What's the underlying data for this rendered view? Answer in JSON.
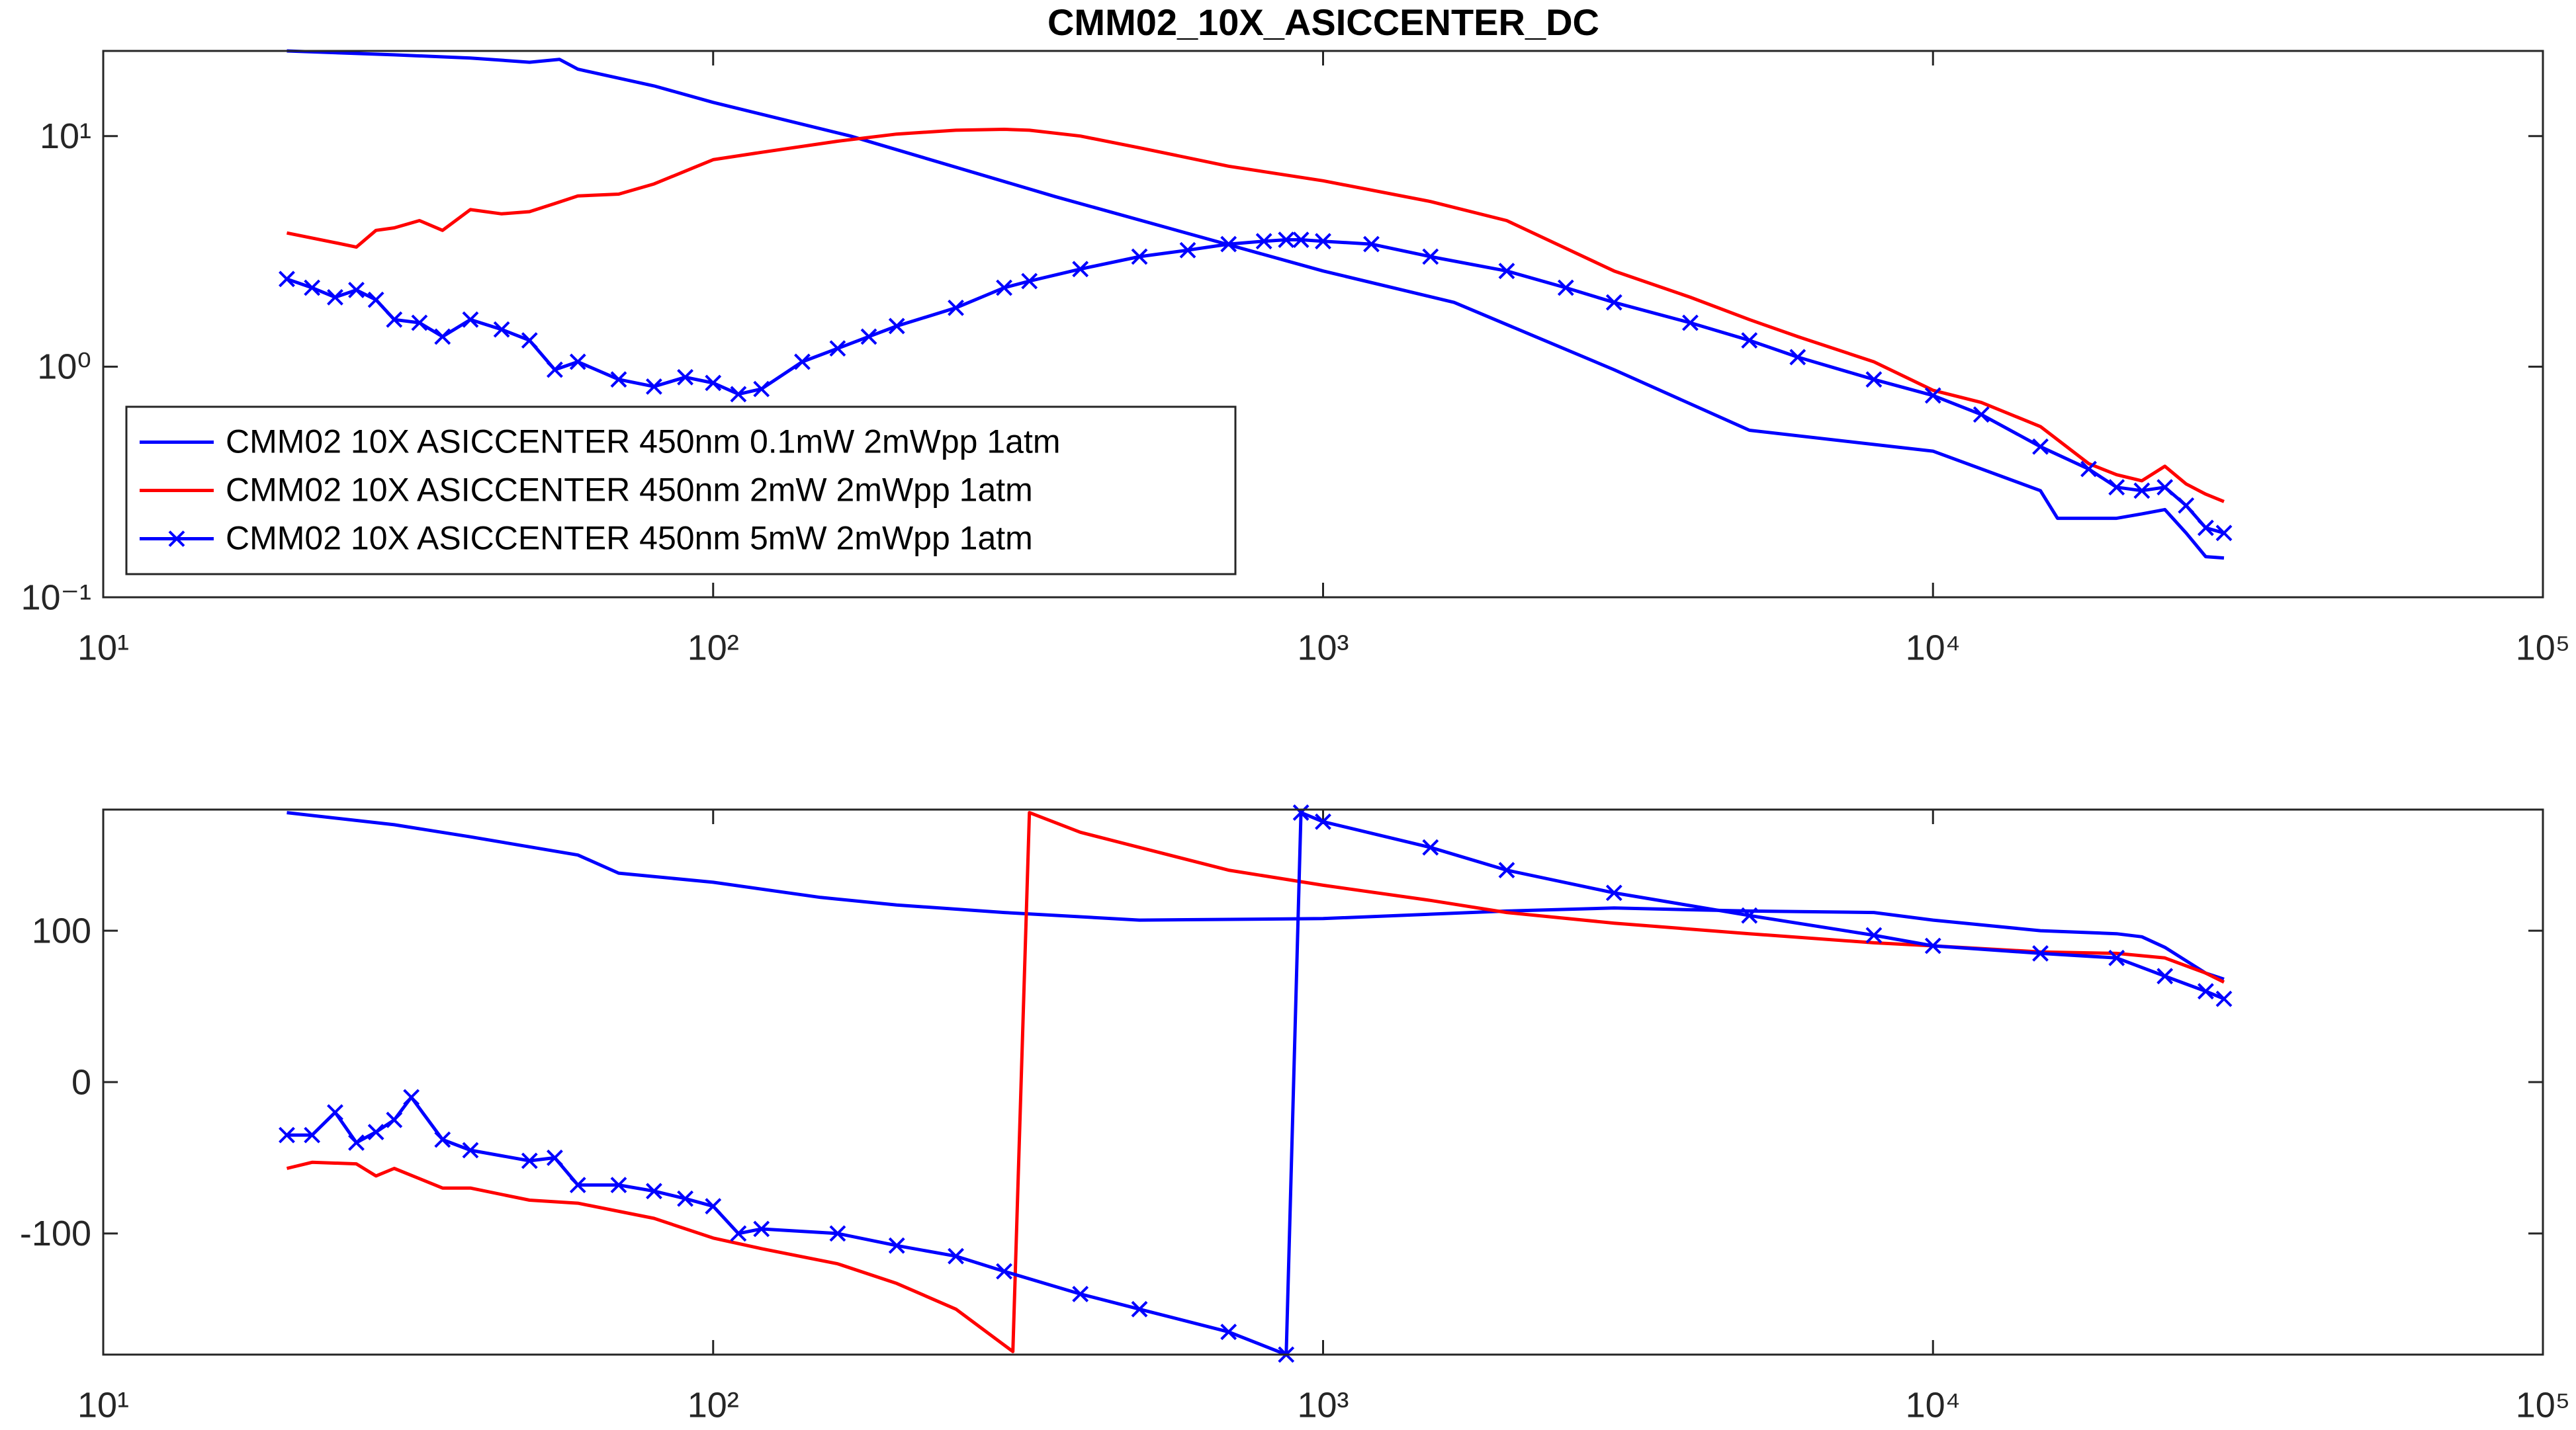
{
  "chart_data": [
    {
      "type": "line",
      "title": "CMM02_10X_ASICCENTER_DC",
      "xscale": "log",
      "yscale": "log",
      "xlim": [
        10,
        100000
      ],
      "xticks": [
        {
          "value": 10,
          "label": "10¹"
        },
        {
          "value": 100,
          "label": "10²"
        },
        {
          "value": 1000,
          "label": "10³"
        },
        {
          "value": 10000,
          "label": "10⁴"
        },
        {
          "value": 100000,
          "label": "10⁵"
        }
      ],
      "ylim": [
        0.1,
        23.4
      ],
      "yticks": [
        {
          "value": 0.1,
          "label": "10⁻¹"
        },
        {
          "value": 1,
          "label": "10⁰"
        },
        {
          "value": 10,
          "label": "10¹"
        }
      ],
      "legend": "southwest",
      "series": [
        {
          "name": "CMM02 10X ASICCENTER 450nm 0.1mW 2mWpp 1atm",
          "color": "#0000ff",
          "x": [
            20,
            30,
            40,
            50,
            56,
            60,
            80,
            100,
            168,
            364,
            1000,
            1640,
            3000,
            5000,
            10000,
            15000,
            16000,
            20000,
            22000,
            24000,
            26000,
            28000,
            30000
          ],
          "values": [
            23.4,
            22.5,
            21.8,
            20.9,
            21.5,
            19.5,
            16.5,
            14,
            10,
            5.46,
            2.6,
            1.9,
            0.97,
            0.53,
            0.43,
            0.29,
            0.22,
            0.22,
            0.23,
            0.24,
            0.19,
            0.15,
            0.148
          ]
        },
        {
          "name": "CMM02 10X ASICCENTER 450nm 2mW 2mWpp 1atm",
          "color": "#ff0000",
          "x": [
            20,
            24,
            26,
            28,
            30,
            33,
            36,
            40,
            45,
            50,
            55,
            60,
            70,
            80,
            100,
            120,
            160,
            200,
            250,
            300,
            330,
            400,
            500,
            700,
            1000,
            1500,
            2000,
            3000,
            4000,
            5000,
            6000,
            8000,
            10000,
            12000,
            15000,
            18000,
            20000,
            22000,
            24000,
            26000,
            28000,
            30000
          ],
          "values": [
            3.8,
            3.45,
            3.3,
            3.9,
            4.0,
            4.3,
            3.9,
            4.8,
            4.6,
            4.7,
            5.1,
            5.5,
            5.6,
            6.2,
            7.9,
            8.5,
            9.5,
            10.2,
            10.6,
            10.7,
            10.6,
            10,
            8.9,
            7.4,
            6.4,
            5.2,
            4.3,
            2.6,
            2.0,
            1.6,
            1.35,
            1.05,
            0.79,
            0.7,
            0.55,
            0.38,
            0.34,
            0.32,
            0.37,
            0.31,
            0.28,
            0.26
          ]
        },
        {
          "name": "CMM02 10X ASICCENTER 450nm 5mW 2mWpp 1atm",
          "color": "#0000ff",
          "marker": "x",
          "x": [
            20,
            22,
            24,
            26,
            28,
            30,
            33,
            36,
            40,
            45,
            50,
            55,
            60,
            70,
            80,
            90,
            100,
            110,
            120,
            140,
            160,
            180,
            200,
            250,
            300,
            330,
            400,
            500,
            600,
            700,
            800,
            870,
            920,
            1000,
            1200,
            1500,
            2000,
            2500,
            3000,
            4000,
            5000,
            6000,
            8000,
            10000,
            12000,
            15000,
            18000,
            20000,
            22000,
            24000,
            26000,
            28000,
            30000
          ],
          "values": [
            2.4,
            2.2,
            2.0,
            2.15,
            1.95,
            1.6,
            1.55,
            1.35,
            1.6,
            1.45,
            1.3,
            0.97,
            1.05,
            0.88,
            0.82,
            0.9,
            0.85,
            0.76,
            0.8,
            1.05,
            1.2,
            1.35,
            1.5,
            1.8,
            2.2,
            2.35,
            2.65,
            3.0,
            3.2,
            3.4,
            3.5,
            3.55,
            3.55,
            3.5,
            3.4,
            3.0,
            2.6,
            2.2,
            1.9,
            1.55,
            1.3,
            1.1,
            0.88,
            0.75,
            0.62,
            0.45,
            0.36,
            0.3,
            0.29,
            0.3,
            0.25,
            0.2,
            0.19
          ]
        }
      ]
    },
    {
      "type": "line",
      "xscale": "log",
      "yscale": "linear",
      "xlim": [
        10,
        100000
      ],
      "xticks": [
        {
          "value": 10,
          "label": "10¹"
        },
        {
          "value": 100,
          "label": "10²"
        },
        {
          "value": 1000,
          "label": "10³"
        },
        {
          "value": 10000,
          "label": "10⁴"
        },
        {
          "value": 100000,
          "label": "10⁵"
        }
      ],
      "ylim": [
        -180,
        180
      ],
      "yticks": [
        -100,
        0,
        100
      ],
      "series": [
        {
          "color": "#0000ff",
          "x": [
            20,
            30,
            40,
            60,
            70,
            100,
            150,
            200,
            300,
            500,
            1000,
            2000,
            3000,
            5000,
            8000,
            10000,
            15000,
            20000,
            22000,
            24000,
            28000,
            30000
          ],
          "values": [
            178,
            170,
            162,
            150,
            138,
            132,
            122,
            117,
            112,
            107,
            108,
            113,
            115,
            113,
            112,
            107,
            100,
            98,
            96,
            89,
            72,
            68
          ]
        },
        {
          "color": "#ff0000",
          "x": [
            20,
            22,
            26,
            28,
            30,
            36,
            40,
            50,
            60,
            80,
            100,
            120,
            160,
            200,
            250,
            310,
            330,
            400,
            500,
            700,
            1000,
            1500,
            2000,
            3000,
            5000,
            8000,
            10000,
            15000,
            20000,
            24000,
            28000,
            30000
          ],
          "values": [
            -57,
            -53,
            -54,
            -62,
            -57,
            -70,
            -70,
            -78,
            -80,
            -90,
            -103,
            -110,
            -120,
            -133,
            -150,
            -178,
            178,
            165,
            155,
            140,
            130,
            120,
            112,
            105,
            98,
            92,
            90,
            86,
            85,
            82,
            72,
            66
          ]
        },
        {
          "color": "#0000ff",
          "marker": "x",
          "x": [
            20,
            22,
            24,
            26,
            28,
            30,
            32,
            36,
            40,
            50,
            55,
            60,
            70,
            80,
            90,
            100,
            110,
            120,
            160,
            200,
            250,
            300,
            400,
            500,
            700,
            870,
            920,
            1000,
            1500,
            2000,
            3000,
            5000,
            8000,
            10000,
            15000,
            20000,
            24000,
            28000,
            30000
          ],
          "values": [
            -35,
            -35,
            -20,
            -40,
            -33,
            -25,
            -10,
            -38,
            -45,
            -52,
            -50,
            -68,
            -68,
            -72,
            -77,
            -82,
            -100,
            -97,
            -100,
            -108,
            -115,
            -125,
            -140,
            -150,
            -165,
            -180,
            178,
            172,
            155,
            140,
            125,
            110,
            97,
            90,
            85,
            82,
            70,
            60,
            55
          ]
        }
      ]
    }
  ]
}
